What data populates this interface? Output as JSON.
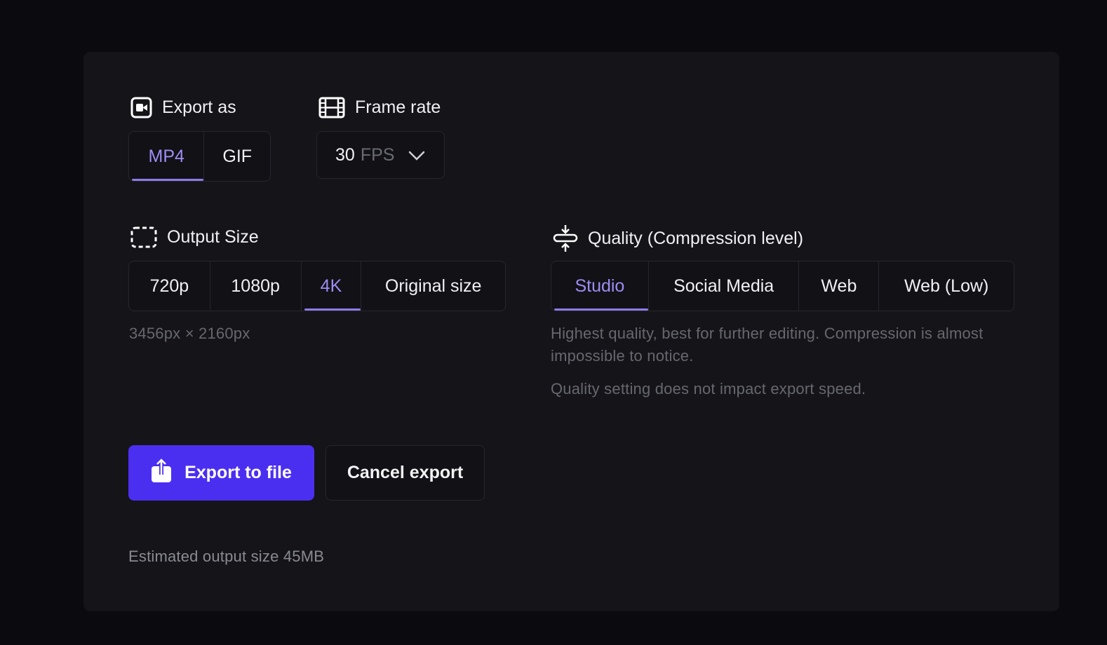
{
  "export_as": {
    "label": "Export as",
    "icon": "video-icon",
    "options": [
      "MP4",
      "GIF"
    ],
    "selected": "MP4"
  },
  "frame_rate": {
    "label": "Frame rate",
    "icon": "film-icon",
    "value": "30",
    "unit": "FPS"
  },
  "output_size": {
    "label": "Output Size",
    "icon": "dashed-frame-icon",
    "options": [
      "720p",
      "1080p",
      "4K",
      "Original size"
    ],
    "selected": "4K",
    "dimensions": "3456px × 2160px"
  },
  "quality": {
    "label": "Quality (Compression level)",
    "icon": "compress-icon",
    "options": [
      "Studio",
      "Social Media",
      "Web",
      "Web (Low)"
    ],
    "selected": "Studio",
    "description": "Highest quality, best for further editing. Compression is almost impossible to notice.",
    "note": "Quality setting does not impact export speed."
  },
  "actions": {
    "export_label": "Export to file",
    "cancel_label": "Cancel export"
  },
  "estimate": "Estimated output size 45MB",
  "colors": {
    "accent": "#9f8cf2",
    "primary_button": "#4b2ff0",
    "panel": "#141419",
    "background": "#0b0b0f"
  }
}
